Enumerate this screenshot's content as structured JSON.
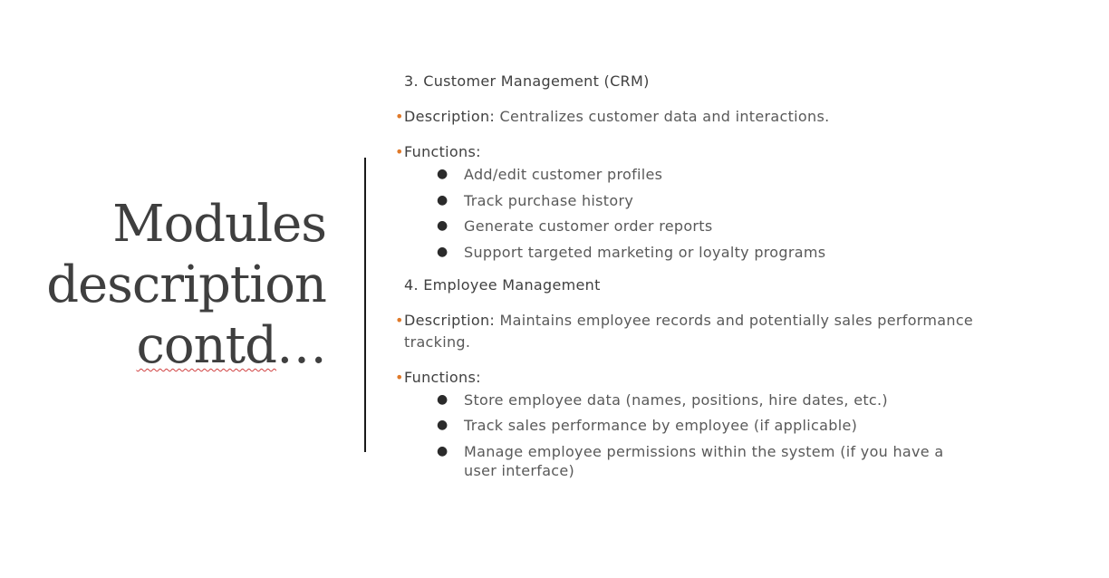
{
  "title": {
    "line1": "Modules",
    "line2": "description",
    "line3_word": "contd",
    "line3_suffix": "…"
  },
  "colors": {
    "accent_bullet": "#e07a2a",
    "title_text": "#3f3f3f",
    "body_text": "#595959",
    "divider": "#1a1a1a"
  },
  "sections": [
    {
      "heading": "3. Customer Management (CRM)",
      "description_label": "Description:",
      "description_text": " Centralizes customer data and interactions.",
      "functions_label": "Functions:",
      "functions": [
        "Add/edit customer profiles",
        "Track purchase history",
        "Generate customer order reports",
        "Support targeted marketing or loyalty programs"
      ]
    },
    {
      "heading": "4. Employee Management",
      "description_label": "Description:",
      "description_text": " Maintains employee records and potentially sales performance tracking.",
      "functions_label": "Functions:",
      "functions": [
        "Store employee data (names, positions, hire dates, etc.)",
        "Track sales performance by employee (if applicable)",
        "Manage employee permissions within the system (if you have a user interface)"
      ]
    }
  ]
}
